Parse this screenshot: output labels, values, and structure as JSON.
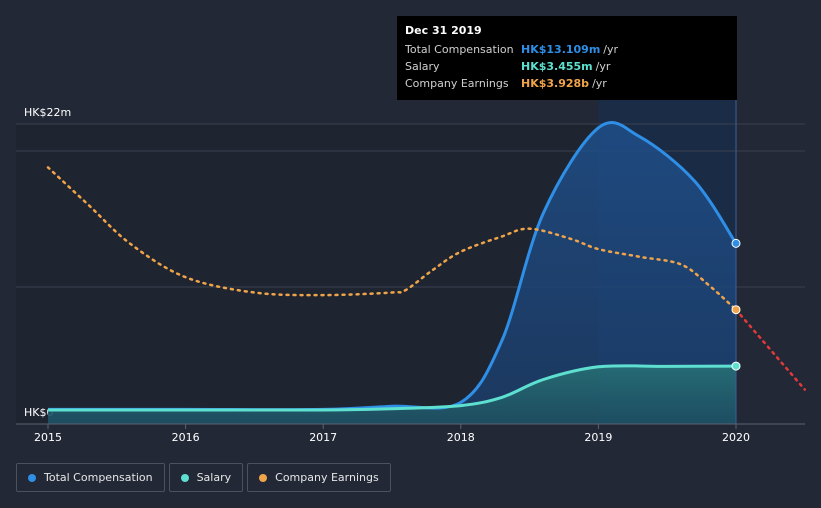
{
  "chart_data": {
    "type": "area",
    "y_axis": {
      "top_label": "HK$22m",
      "bottom_label": "HK$0",
      "ylim": [
        0,
        22
      ]
    },
    "x_ticks": [
      "2015",
      "2016",
      "2017",
      "2018",
      "2019",
      "2020"
    ],
    "series": [
      {
        "name": "Total Compensation",
        "unit": "HK$m",
        "color": "#2f8fe6",
        "x": [
          2015,
          2016,
          2017,
          2017.5,
          2018,
          2018.3,
          2018.6,
          2019,
          2019.3,
          2019.7,
          2020
        ],
        "values": [
          0.05,
          0.05,
          0.05,
          0.3,
          0.6,
          5.5,
          15.5,
          22.2,
          21.5,
          18.0,
          13.109
        ]
      },
      {
        "name": "Salary",
        "unit": "HK$m",
        "color": "#5ee0d0",
        "x": [
          2015,
          2016,
          2017,
          2017.5,
          2018,
          2018.3,
          2018.6,
          2019,
          2019.5,
          2020
        ],
        "values": [
          0.0,
          0.0,
          0.0,
          0.1,
          0.35,
          1.0,
          2.4,
          3.4,
          3.43,
          3.455
        ]
      },
      {
        "name": "Company Earnings",
        "unit": "HK$b",
        "color": "#f0a44a",
        "x": [
          2015,
          2015.3,
          2015.6,
          2016,
          2016.5,
          2017,
          2017.5,
          2017.6,
          2017.8,
          2018,
          2018.3,
          2018.5,
          2018.8,
          2019,
          2019.3,
          2019.6,
          2019.8,
          2020,
          2020.5
        ],
        "values": [
          9.5,
          8.0,
          6.5,
          5.2,
          4.6,
          4.5,
          4.6,
          4.7,
          5.5,
          6.2,
          6.8,
          7.1,
          6.7,
          6.3,
          6.0,
          5.7,
          4.9,
          3.928,
          0.8
        ],
        "forecast_from": 2020
      }
    ],
    "highlight_x": 2020,
    "tooltip": {
      "date": "Dec 31 2019",
      "rows": [
        {
          "label": "Total Compensation",
          "value": "HK$13.109m",
          "unit": "/yr",
          "color": "#2f8fe6"
        },
        {
          "label": "Salary",
          "value": "HK$3.455m",
          "unit": "/yr",
          "color": "#5ee0d0"
        },
        {
          "label": "Company Earnings",
          "value": "HK$3.928b",
          "unit": "/yr",
          "color": "#f0a44a"
        }
      ]
    },
    "legend": [
      {
        "label": "Total Compensation",
        "color": "#2f8fe6"
      },
      {
        "label": "Salary",
        "color": "#5ee0d0"
      },
      {
        "label": "Company Earnings",
        "color": "#f0a44a"
      }
    ],
    "forecast_color": "#e03a3a"
  }
}
